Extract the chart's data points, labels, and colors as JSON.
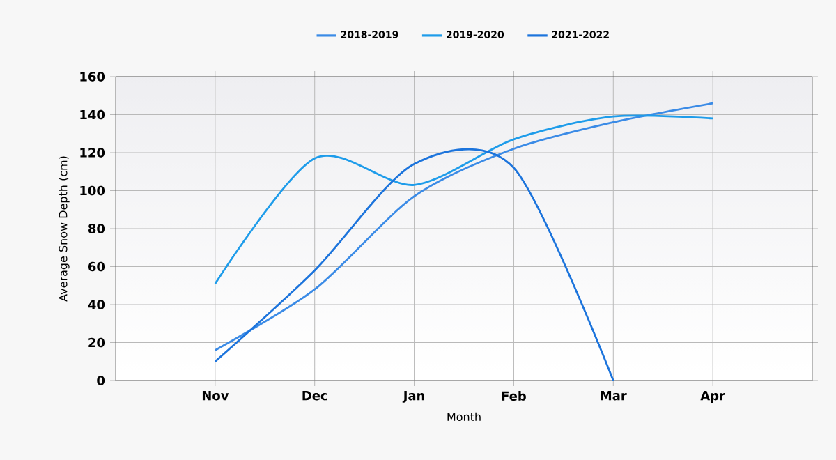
{
  "chart_data": {
    "type": "line",
    "xlabel": "Month",
    "ylabel": "Average Snow Depth (cm)",
    "categories": [
      "Nov",
      "Dec",
      "Jan",
      "Feb",
      "Mar",
      "Apr"
    ],
    "series": [
      {
        "name": "2018-2019",
        "color": "#3b8be6",
        "values": [
          16,
          48,
          97,
          122,
          136,
          146
        ]
      },
      {
        "name": "2019-2020",
        "color": "#1e9cea",
        "values": [
          51,
          117,
          103,
          127,
          139,
          138
        ]
      },
      {
        "name": "2021-2022",
        "color": "#1c74dc",
        "values": [
          10,
          58,
          114,
          112,
          0,
          null
        ]
      }
    ],
    "ylim": [
      0,
      160
    ],
    "yticks": [
      0,
      20,
      40,
      60,
      80,
      100,
      120,
      140,
      160
    ],
    "grid": true,
    "legend": "top",
    "marker": "none",
    "line_style": "solid"
  }
}
